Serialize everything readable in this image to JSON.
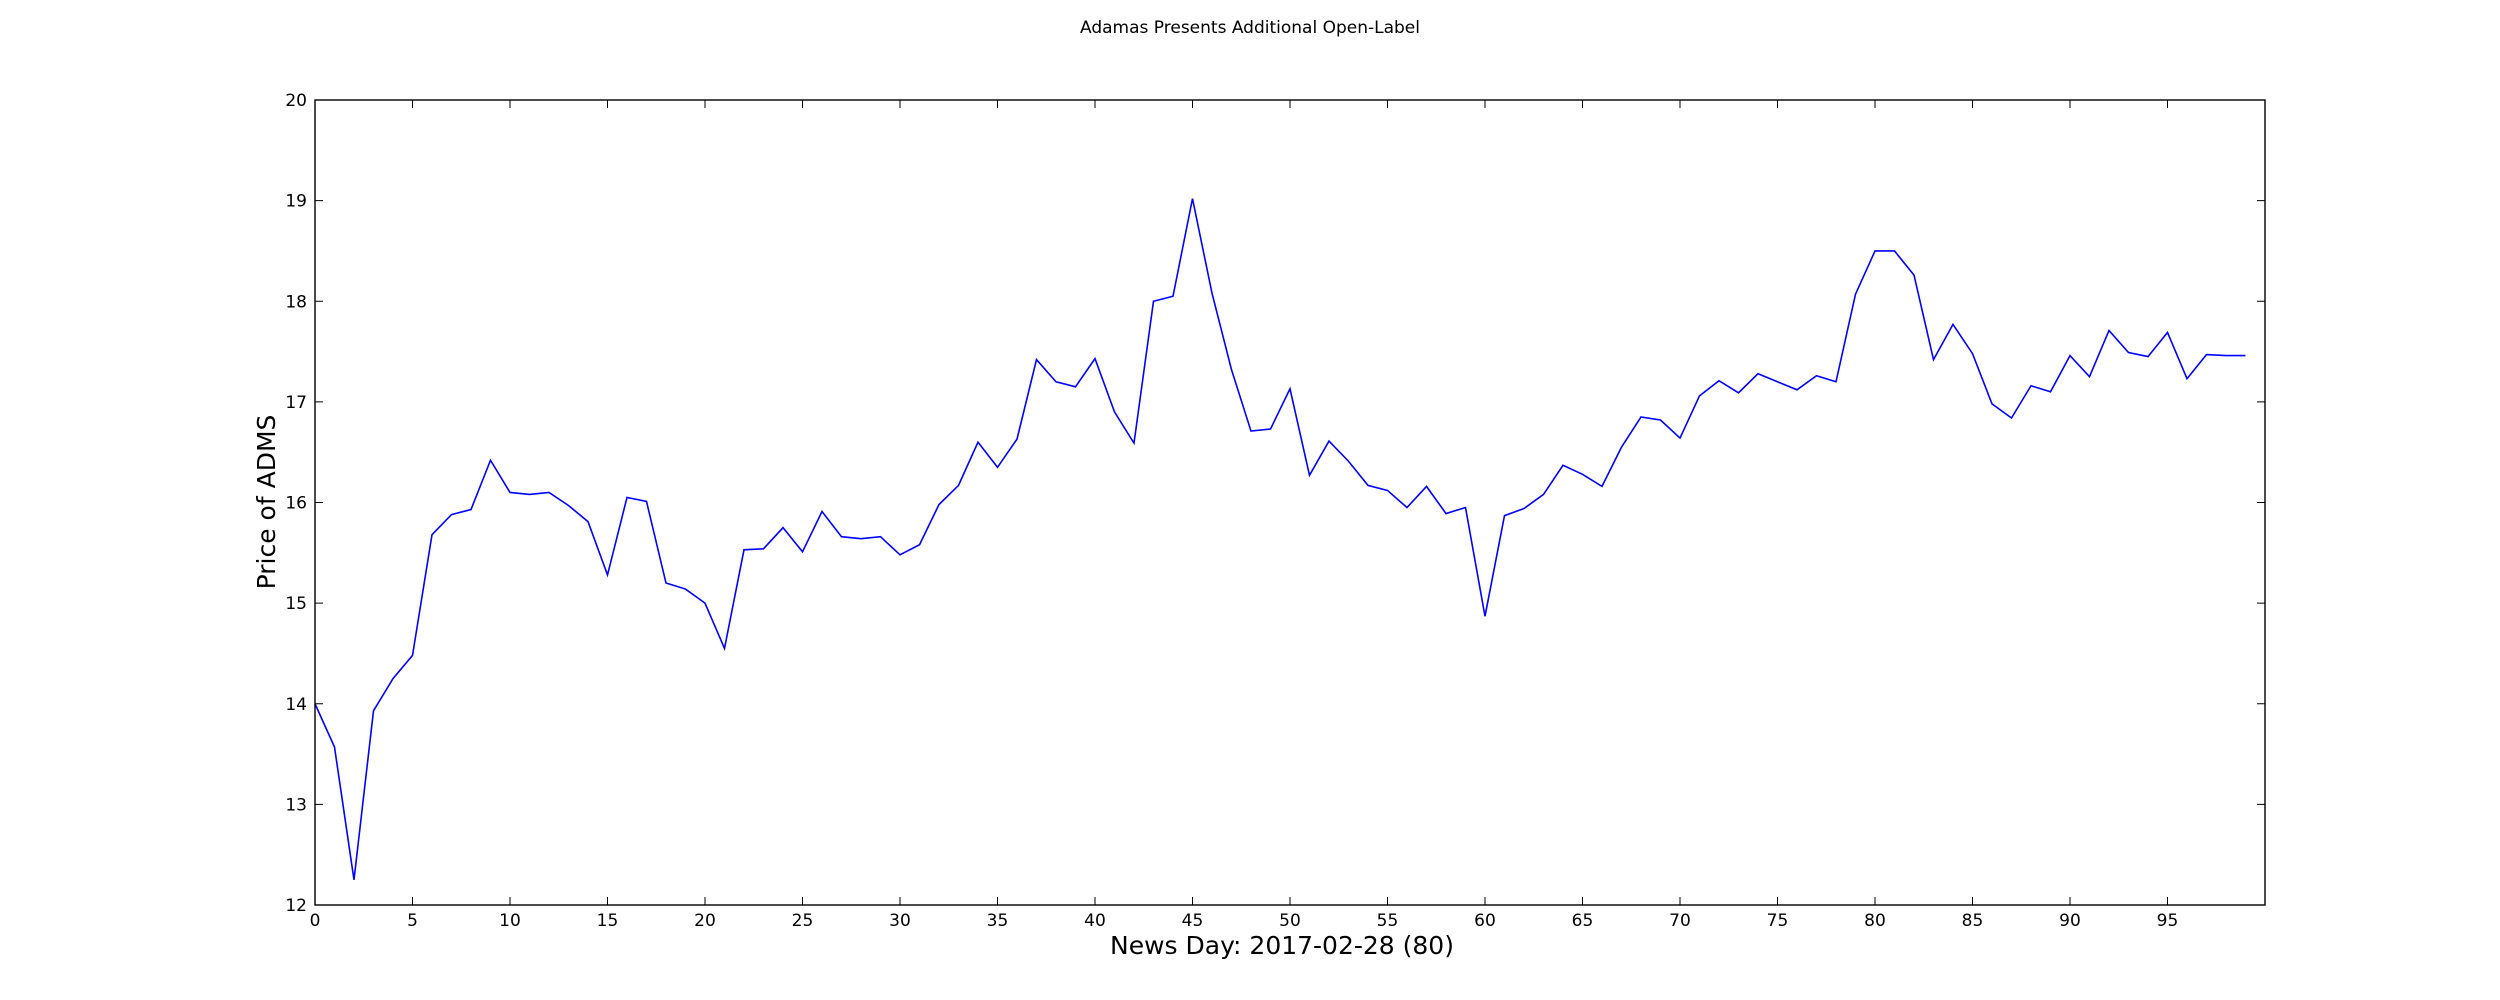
{
  "chart_data": {
    "type": "line",
    "title": "Adamas Presents Additional Open-Label",
    "xlabel": "News Day: 2017-02-28 (80)",
    "ylabel": "Price of ADMS",
    "xlim": [
      0,
      100
    ],
    "ylim": [
      12,
      20
    ],
    "xticks": [
      0,
      5,
      10,
      15,
      20,
      25,
      30,
      35,
      40,
      45,
      50,
      55,
      60,
      65,
      70,
      75,
      80,
      85,
      90,
      95
    ],
    "yticks": [
      12,
      13,
      14,
      15,
      16,
      17,
      18,
      19,
      20
    ],
    "grid": false,
    "line_color": "#0000ff",
    "series": [
      {
        "x": [
          0,
          1,
          2,
          3,
          4,
          5,
          6,
          7,
          8,
          9,
          10,
          11,
          12,
          13,
          14,
          15,
          16,
          17,
          18,
          19,
          20,
          21,
          22,
          23,
          24,
          25,
          26,
          27,
          28,
          29,
          30,
          31,
          32,
          33,
          34,
          35,
          36,
          37,
          38,
          39,
          40,
          41,
          42,
          43,
          44,
          45,
          46,
          47,
          48,
          49,
          50,
          51,
          52,
          53,
          54,
          55,
          56,
          57,
          58,
          59,
          60,
          61,
          62,
          63,
          64,
          65,
          66,
          67,
          68,
          69,
          70,
          71,
          72,
          73,
          74,
          75,
          76,
          77,
          78,
          79,
          80,
          81,
          82,
          83,
          84,
          85,
          86,
          87,
          88,
          89,
          90,
          91,
          92,
          93,
          94,
          95,
          96,
          97,
          98,
          99
        ],
        "values": [
          14.0,
          13.57,
          12.25,
          13.93,
          14.25,
          14.48,
          15.68,
          15.88,
          15.93,
          16.42,
          16.1,
          16.08,
          16.1,
          15.97,
          15.81,
          15.28,
          16.05,
          16.01,
          15.2,
          15.14,
          15.0,
          14.55,
          15.53,
          15.54,
          15.75,
          15.51,
          15.91,
          15.66,
          15.64,
          15.66,
          15.48,
          15.58,
          15.98,
          16.17,
          16.6,
          16.35,
          16.63,
          17.42,
          17.2,
          17.15,
          17.43,
          16.9,
          16.59,
          18.0,
          18.05,
          19.02,
          18.08,
          17.32,
          16.71,
          16.73,
          17.13,
          16.27,
          16.61,
          16.41,
          16.17,
          16.12,
          15.95,
          16.16,
          15.89,
          15.95,
          14.87,
          15.87,
          15.94,
          16.08,
          16.37,
          16.28,
          16.16,
          16.55,
          16.85,
          16.82,
          16.64,
          17.06,
          17.21,
          17.09,
          17.28,
          17.2,
          17.12,
          17.26,
          17.2,
          18.07,
          18.5,
          18.5,
          18.26,
          17.42,
          17.77,
          17.48,
          16.98,
          16.84,
          17.16,
          17.1,
          17.46,
          17.25,
          17.71,
          17.49,
          17.45,
          17.69,
          17.23,
          17.47,
          17.46,
          17.46
        ]
      }
    ]
  }
}
